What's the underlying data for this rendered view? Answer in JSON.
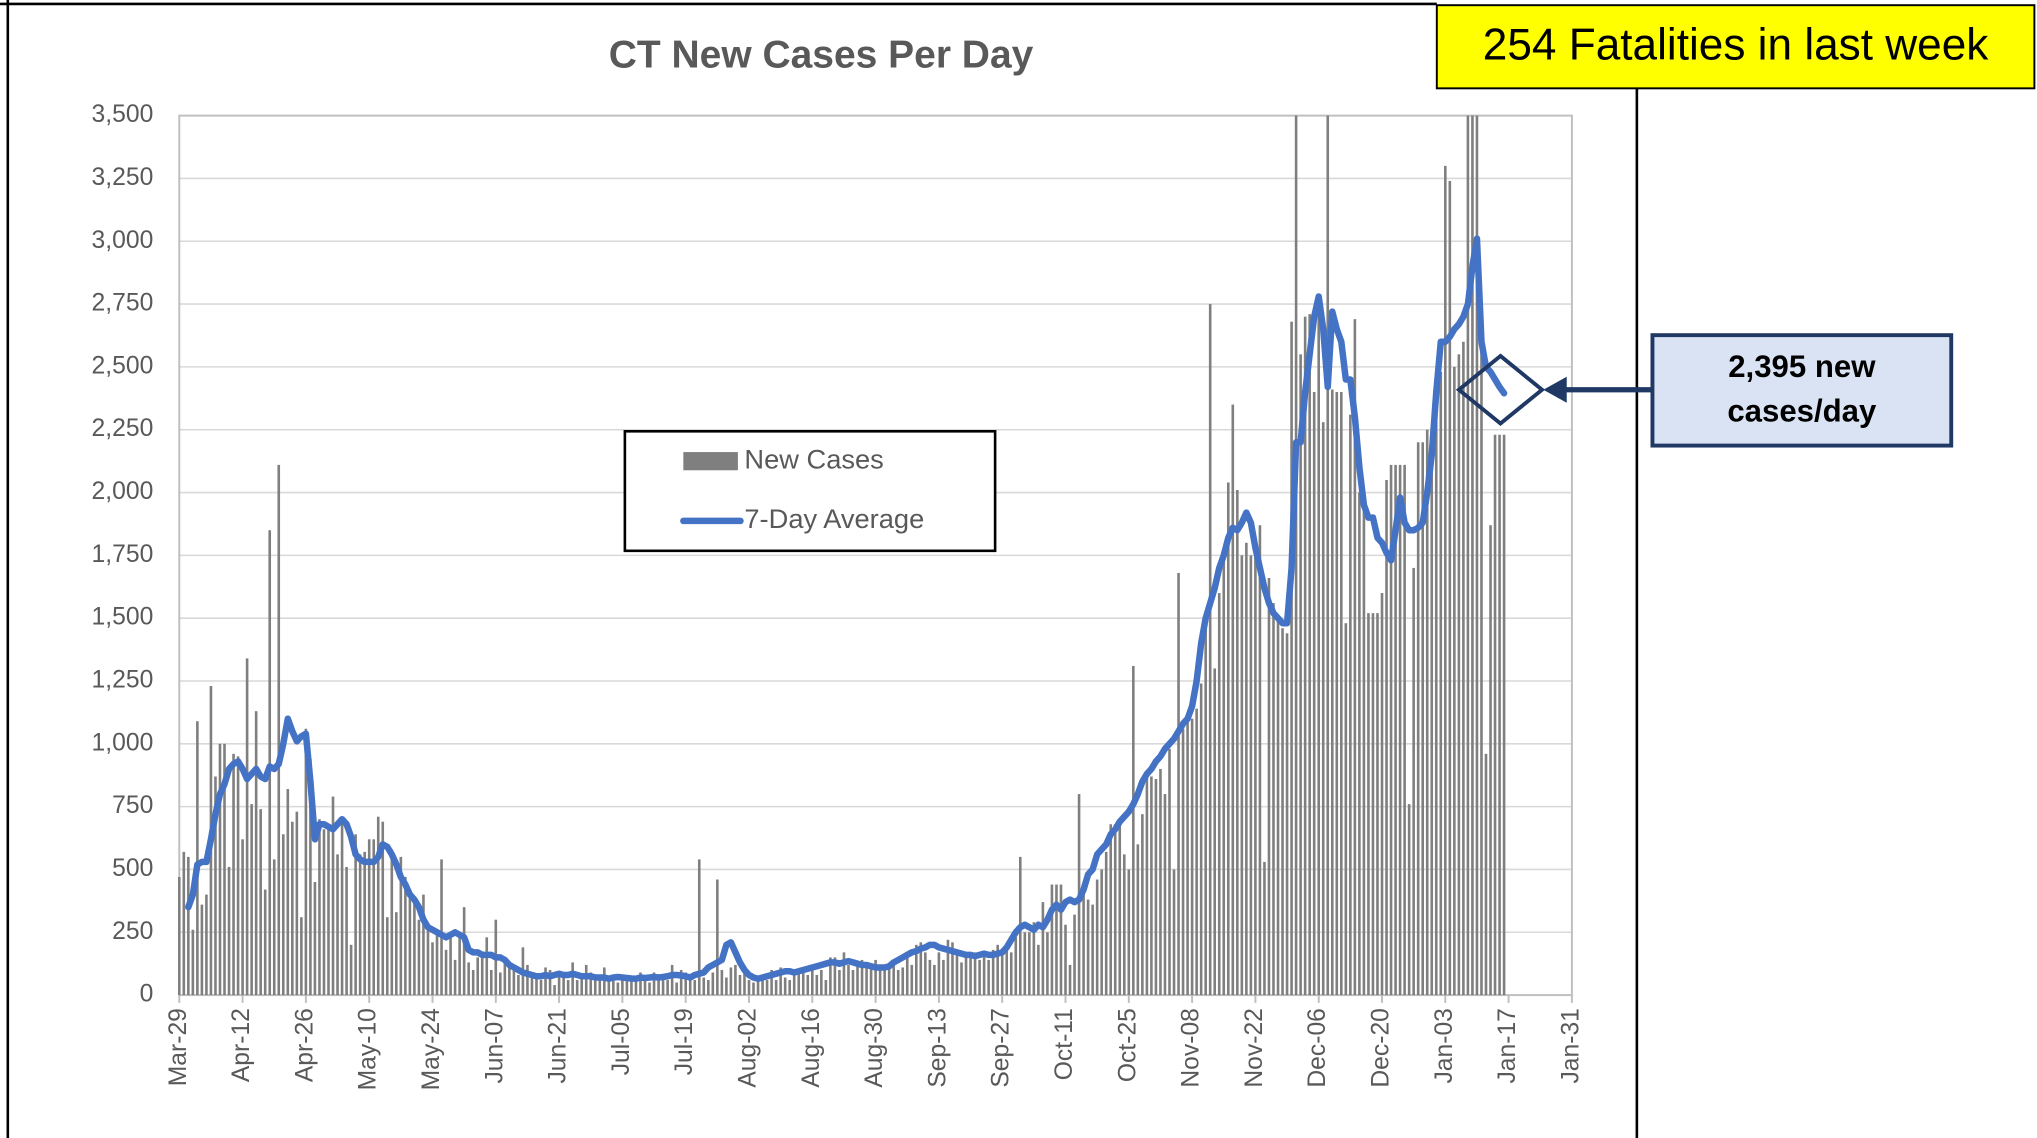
{
  "chart_data": {
    "type": "combo",
    "title": "CT New Cases Per Day",
    "annotations": {
      "top_box": "254 Fatalities in last week",
      "callout": [
        "2,395 new",
        "cases/day"
      ]
    },
    "categories": [
      "Mar-29",
      null,
      null,
      null,
      null,
      null,
      null,
      null,
      null,
      null,
      null,
      null,
      null,
      null,
      "Apr-12",
      null,
      null,
      null,
      null,
      null,
      null,
      null,
      null,
      null,
      null,
      null,
      null,
      null,
      "Apr-26",
      null,
      null,
      null,
      null,
      null,
      null,
      null,
      null,
      null,
      null,
      null,
      null,
      null,
      "May-10",
      null,
      null,
      null,
      null,
      null,
      null,
      null,
      null,
      null,
      null,
      null,
      null,
      null,
      "May-24",
      null,
      null,
      null,
      null,
      null,
      null,
      null,
      null,
      null,
      null,
      null,
      null,
      null,
      "Jun-07",
      null,
      null,
      null,
      null,
      null,
      null,
      null,
      null,
      null,
      null,
      null,
      null,
      null,
      "Jun-21",
      null,
      null,
      null,
      null,
      null,
      null,
      null,
      null,
      null,
      null,
      null,
      null,
      null,
      "Jul-05",
      null,
      null,
      null,
      null,
      null,
      null,
      null,
      null,
      null,
      null,
      null,
      null,
      null,
      "Jul-19",
      null,
      null,
      null,
      null,
      null,
      null,
      null,
      null,
      null,
      null,
      null,
      null,
      null,
      "Aug-02",
      null,
      null,
      null,
      null,
      null,
      null,
      null,
      null,
      null,
      null,
      null,
      null,
      null,
      "Aug-16",
      null,
      null,
      null,
      null,
      null,
      null,
      null,
      null,
      null,
      null,
      null,
      null,
      null,
      "Aug-30",
      null,
      null,
      null,
      null,
      null,
      null,
      null,
      null,
      null,
      null,
      null,
      null,
      null,
      "Sep-13",
      null,
      null,
      null,
      null,
      null,
      null,
      null,
      null,
      null,
      null,
      null,
      null,
      null,
      "Sep-27",
      null,
      null,
      null,
      null,
      null,
      null,
      null,
      null,
      null,
      null,
      null,
      null,
      null,
      "Oct-11",
      null,
      null,
      null,
      null,
      null,
      null,
      null,
      null,
      null,
      null,
      null,
      null,
      null,
      "Oct-25",
      null,
      null,
      null,
      null,
      null,
      null,
      null,
      null,
      null,
      null,
      null,
      null,
      null,
      "Nov-08",
      null,
      null,
      null,
      null,
      null,
      null,
      null,
      null,
      null,
      null,
      null,
      null,
      null,
      "Nov-22",
      null,
      null,
      null,
      null,
      null,
      null,
      null,
      null,
      null,
      null,
      null,
      null,
      null,
      "Dec-06",
      null,
      null,
      null,
      null,
      null,
      null,
      null,
      null,
      null,
      null,
      null,
      null,
      null,
      "Dec-20",
      null,
      null,
      null,
      null,
      null,
      null,
      null,
      null,
      null,
      null,
      null,
      null,
      null,
      "Jan-03",
      null,
      null,
      null,
      null,
      null,
      null,
      null,
      null,
      null,
      null,
      null,
      null,
      null,
      "Jan-17",
      null,
      null,
      null,
      null,
      null,
      null,
      null,
      null,
      null,
      null,
      null,
      null,
      null,
      "Jan-31"
    ],
    "series": [
      {
        "name": "New Cases",
        "type": "bar",
        "color": "#7f7f7f",
        "values": [
          470,
          570,
          550,
          260,
          1090,
          360,
          400,
          1230,
          870,
          1000,
          1000,
          510,
          960,
          950,
          620,
          1340,
          760,
          1130,
          740,
          420,
          1850,
          540,
          2110,
          640,
          820,
          690,
          730,
          310,
          1060,
          940,
          450,
          700,
          660,
          680,
          790,
          560,
          700,
          510,
          200,
          640,
          560,
          570,
          620,
          620,
          710,
          690,
          310,
          580,
          330,
          550,
          470,
          420,
          380,
          300,
          400,
          270,
          210,
          250,
          540,
          180,
          250,
          140,
          240,
          350,
          130,
          100,
          150,
          170,
          230,
          100,
          300,
          90,
          130,
          120,
          120,
          80,
          190,
          120,
          90,
          80,
          60,
          110,
          100,
          40,
          70,
          80,
          60,
          130,
          60,
          70,
          120,
          90,
          60,
          60,
          110,
          70,
          60,
          50,
          80,
          60,
          70,
          60,
          90,
          60,
          50,
          90,
          70,
          80,
          60,
          120,
          50,
          100,
          90,
          80,
          60,
          540,
          70,
          60,
          90,
          460,
          100,
          70,
          110,
          120,
          80,
          90,
          60,
          50,
          70,
          80,
          60,
          100,
          60,
          110,
          70,
          60,
          100,
          100,
          90,
          80,
          120,
          80,
          100,
          60,
          150,
          150,
          100,
          170,
          120,
          100,
          130,
          140,
          130,
          110,
          140,
          120,
          110,
          120,
          140,
          100,
          110,
          150,
          120,
          200,
          210,
          170,
          140,
          120,
          170,
          140,
          220,
          210,
          180,
          130,
          160,
          150,
          170,
          140,
          160,
          140,
          180,
          200,
          180,
          190,
          170,
          230,
          550,
          250,
          250,
          290,
          200,
          370,
          250,
          440,
          440,
          440,
          280,
          120,
          320,
          800,
          400,
          380,
          360,
          460,
          500,
          570,
          680,
          680,
          680,
          560,
          500,
          1310,
          600,
          720,
          870,
          870,
          860,
          900,
          800,
          980,
          500,
          1680,
          1060,
          1120,
          1100,
          1140,
          1240,
          1520,
          2750,
          1300,
          1600,
          1750,
          2040,
          2350,
          2010,
          1750,
          1800,
          1750,
          1750,
          1870,
          530,
          1660,
          1560,
          1500,
          1460,
          1440,
          2680,
          3500,
          2550,
          2700,
          2710,
          2400,
          2720,
          2280,
          3500,
          2410,
          2400,
          2400,
          1480,
          2310,
          2690,
          2000,
          1950,
          1520,
          1520,
          1520,
          1600,
          2050,
          2110,
          2110,
          2110,
          2110,
          760,
          1700,
          2200,
          2200,
          2250,
          2250,
          2330,
          2480,
          3300,
          3240,
          2500,
          2550,
          2600,
          3500,
          3500,
          3500,
          2600,
          960,
          1870,
          2230,
          2230,
          2230,
          null,
          null,
          null,
          null,
          null,
          null,
          null,
          null,
          null,
          null,
          null,
          null,
          null,
          null,
          null
        ]
      },
      {
        "name": "7-Day Average",
        "type": "line",
        "color": "#4472c4",
        "values": [
          null,
          null,
          350,
          400,
          520,
          530,
          530,
          620,
          720,
          800,
          840,
          900,
          920,
          930,
          900,
          860,
          880,
          900,
          870,
          860,
          910,
          900,
          920,
          1000,
          1100,
          1050,
          1010,
          1030,
          1040,
          850,
          620,
          680,
          680,
          670,
          660,
          680,
          700,
          680,
          630,
          560,
          540,
          530,
          530,
          530,
          550,
          600,
          590,
          560,
          520,
          470,
          440,
          400,
          380,
          350,
          300,
          270,
          260,
          250,
          240,
          230,
          240,
          250,
          240,
          230,
          180,
          170,
          170,
          160,
          160,
          160,
          150,
          150,
          140,
          120,
          110,
          100,
          90,
          85,
          80,
          75,
          75,
          80,
          75,
          80,
          85,
          80,
          80,
          85,
          80,
          75,
          75,
          75,
          70,
          70,
          70,
          65,
          70,
          72,
          70,
          68,
          66,
          65,
          70,
          68,
          70,
          72,
          70,
          72,
          75,
          80,
          80,
          78,
          75,
          70,
          80,
          85,
          90,
          110,
          120,
          130,
          140,
          200,
          210,
          170,
          130,
          100,
          80,
          70,
          65,
          70,
          75,
          80,
          85,
          90,
          95,
          95,
          90,
          95,
          100,
          105,
          110,
          115,
          120,
          125,
          130,
          130,
          125,
          130,
          135,
          130,
          125,
          120,
          120,
          115,
          110,
          110,
          110,
          115,
          130,
          140,
          150,
          160,
          170,
          175,
          185,
          190,
          200,
          200,
          190,
          185,
          180,
          175,
          170,
          165,
          160,
          160,
          155,
          160,
          165,
          160,
          160,
          165,
          170,
          190,
          220,
          250,
          270,
          280,
          270,
          260,
          280,
          270,
          300,
          340,
          360,
          340,
          370,
          380,
          370,
          380,
          420,
          480,
          500,
          560,
          580,
          600,
          640,
          660,
          690,
          710,
          730,
          760,
          800,
          850,
          880,
          900,
          930,
          950,
          980,
          1000,
          1020,
          1050,
          1080,
          1100,
          1150,
          1250,
          1400,
          1500,
          1560,
          1620,
          1700,
          1750,
          1820,
          1860,
          1850,
          1880,
          1920,
          1880,
          1780,
          1700,
          1620,
          1560,
          1520,
          1500,
          1480,
          1480,
          1700,
          2200,
          2200,
          2400,
          2550,
          2700,
          2780,
          2650,
          2420,
          2720,
          2650,
          2600,
          2450,
          2450,
          2300,
          2100,
          1950,
          1900,
          1900,
          1820,
          1800,
          1760,
          1730,
          1850,
          1980,
          1880,
          1850,
          1850,
          1860,
          1880,
          2000,
          2150,
          2400,
          2600,
          2600,
          2620,
          2650,
          2670,
          2700,
          2750,
          2900,
          3010,
          2600,
          2500,
          2480,
          2450,
          2420,
          2395,
          null,
          null,
          null,
          null,
          null,
          null,
          null,
          null,
          null,
          null,
          null,
          null,
          null,
          null,
          null
        ]
      }
    ],
    "ylim": [
      0,
      3500
    ],
    "yticks": [
      0,
      250,
      500,
      750,
      {
        "value": 1000,
        "label": "1,000"
      },
      {
        "value": 1250,
        "label": "1,250"
      },
      {
        "value": 1500,
        "label": "1,500"
      },
      {
        "value": 1750,
        "label": "1,750"
      },
      {
        "value": 2000,
        "label": "2,000"
      },
      {
        "value": 2250,
        "label": "2,250"
      },
      {
        "value": 2500,
        "label": "2,500"
      },
      {
        "value": 2750,
        "label": "2,750"
      },
      {
        "value": 3000,
        "label": "3,000"
      },
      {
        "value": 3250,
        "label": "3,250"
      },
      {
        "value": 3500,
        "label": "3,500"
      }
    ],
    "grid": true
  }
}
